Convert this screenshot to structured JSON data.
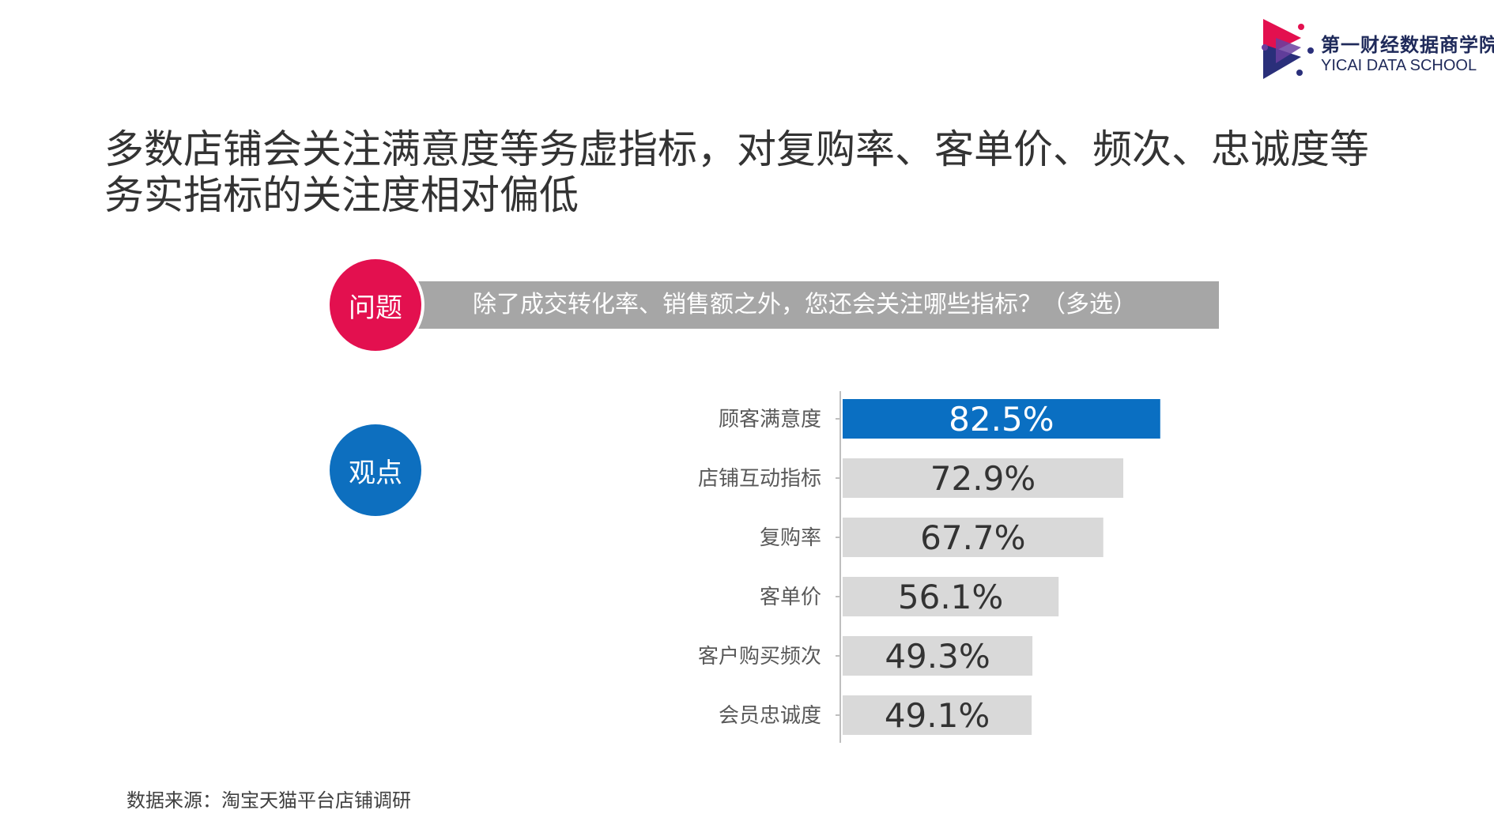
{
  "logo": {
    "name_cn": "第一财经数据商学院",
    "name_en": "YICAI DATA SCHOOL"
  },
  "headline": {
    "line1": "多数店铺会关注满意度等务虚指标，对复购率、客单价、频次、忠诚度等",
    "line2": "务实指标的关注度相对偏低"
  },
  "question": {
    "badge": "问题",
    "text": "除了成交转化率、销售额之外，您还会关注哪些指标？（多选）"
  },
  "viewpoint": {
    "badge": "观点"
  },
  "chart_data": {
    "type": "bar",
    "orientation": "horizontal",
    "categories": [
      "顾客满意度",
      "店铺互动指标",
      "复购率",
      "客单价",
      "客户购买频次",
      "会员忠诚度"
    ],
    "values": [
      82.5,
      72.9,
      67.7,
      56.1,
      49.3,
      49.1
    ],
    "value_labels": [
      "82.5%",
      "72.9%",
      "67.7%",
      "56.1%",
      "49.3%",
      "49.1%"
    ],
    "unit": "%",
    "highlight_index": 0,
    "xlim": [
      0,
      100
    ],
    "grid": false,
    "legend": "none",
    "colors": {
      "highlight": "#0a6fc2",
      "default": "#d9d9d9",
      "highlight_label": "#ffffff",
      "default_label": "#333333"
    }
  },
  "source": {
    "text": "数据来源：淘宝天猫平台店铺调研"
  }
}
